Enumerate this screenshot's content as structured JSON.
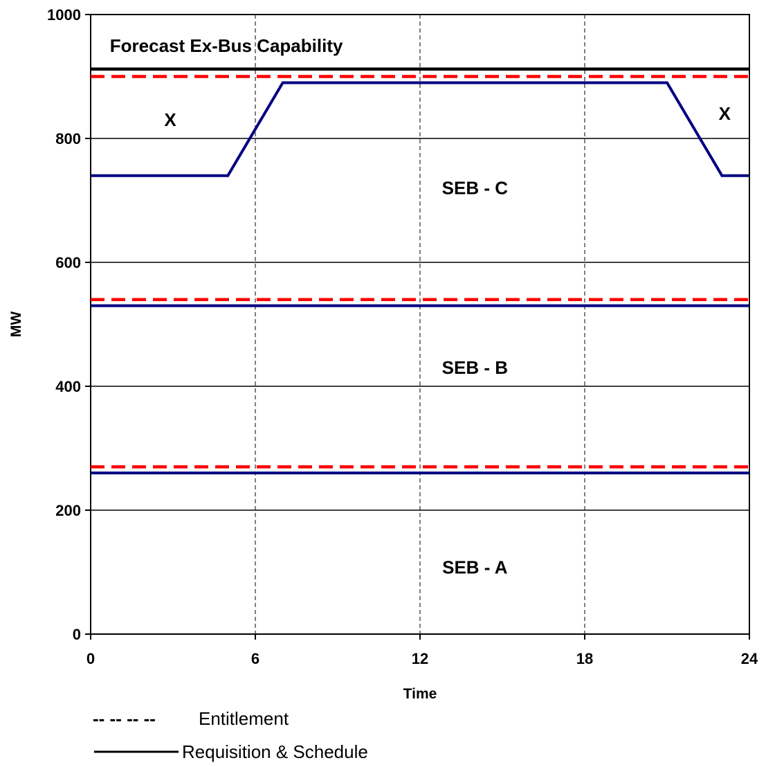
{
  "chart_data": {
    "type": "line",
    "xlabel": "Time",
    "ylabel": "MW",
    "xlim": [
      0,
      24
    ],
    "ylim": [
      0,
      1000
    ],
    "x_ticks": [
      "0",
      "6",
      "12",
      "18",
      "24"
    ],
    "y_ticks": [
      "0",
      "200",
      "400",
      "600",
      "800",
      "1000"
    ],
    "grid": {
      "horizontal": "solid",
      "vertical": "dashed"
    },
    "series": [
      {
        "style": "solid-black",
        "color": "#000000",
        "x": [
          0,
          24
        ],
        "y": [
          912,
          912
        ]
      },
      {
        "style": "dashed-red",
        "color": "#ff0000",
        "x": [
          0,
          24
        ],
        "y": [
          900,
          900
        ]
      },
      {
        "style": "solid-navy",
        "color": "#000080",
        "x": [
          0,
          1,
          5,
          7,
          21,
          23,
          24
        ],
        "y": [
          740,
          740,
          740,
          890,
          890,
          740,
          740
        ]
      },
      {
        "style": "dashed-red",
        "color": "#ff0000",
        "x": [
          0,
          24
        ],
        "y": [
          540,
          540
        ]
      },
      {
        "style": "solid-navy",
        "color": "#000080",
        "x": [
          0,
          24
        ],
        "y": [
          530,
          530
        ]
      },
      {
        "style": "dashed-red",
        "color": "#ff0000",
        "x": [
          0,
          24
        ],
        "y": [
          270,
          270
        ]
      },
      {
        "style": "solid-navy",
        "color": "#000080",
        "x": [
          0,
          24
        ],
        "y": [
          260,
          260
        ]
      }
    ],
    "annotations": [
      {
        "text": "Forecast Ex-Bus Capability",
        "x": 0.7,
        "y": 950,
        "anchor": "start"
      },
      {
        "text": "X",
        "x": 2.9,
        "y": 830,
        "anchor": "middle"
      },
      {
        "text": "X",
        "x": 23.1,
        "y": 840,
        "anchor": "middle"
      },
      {
        "text": "SEB - C",
        "x": 14.0,
        "y": 720,
        "anchor": "middle"
      },
      {
        "text": "SEB - B",
        "x": 14.0,
        "y": 430,
        "anchor": "middle"
      },
      {
        "text": "SEB - A",
        "x": 14.0,
        "y": 108,
        "anchor": "middle"
      }
    ],
    "legend": {
      "placement": "bottom-left",
      "items": [
        {
          "marker": "-- -- -- --",
          "label": "Entitlement",
          "style": "dashed"
        },
        {
          "marker": "",
          "label": "Requisition & Schedule",
          "style": "solid"
        }
      ]
    }
  }
}
